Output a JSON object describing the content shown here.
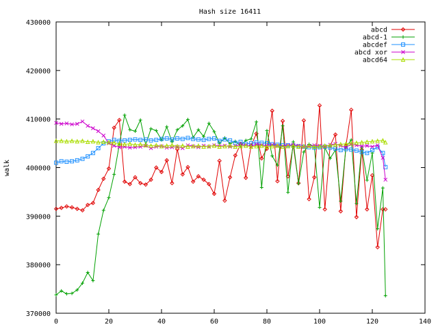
{
  "chart_data": {
    "type": "line",
    "title": "Hash size 16411",
    "xlabel": "",
    "ylabel": "walk",
    "xlim": [
      0,
      140
    ],
    "ylim": [
      370000,
      430000
    ],
    "xticks": [
      0,
      20,
      40,
      60,
      80,
      100,
      120,
      140
    ],
    "yticks": [
      370000,
      380000,
      390000,
      400000,
      410000,
      420000,
      430000
    ],
    "legend_position": "top-right",
    "grid": false,
    "series": [
      {
        "name": "abcd",
        "color": "#e00000",
        "marker": "diamond",
        "x": [
          0,
          2,
          4,
          6,
          8,
          10,
          12,
          14,
          16,
          18,
          20,
          22,
          24,
          26,
          28,
          30,
          32,
          34,
          36,
          38,
          40,
          42,
          44,
          46,
          48,
          50,
          52,
          54,
          56,
          58,
          60,
          62,
          64,
          66,
          68,
          70,
          72,
          74,
          76,
          78,
          80,
          82,
          84,
          86,
          88,
          90,
          92,
          94,
          96,
          98,
          100,
          102,
          104,
          106,
          108,
          110,
          112,
          114,
          116,
          118,
          120,
          122,
          124,
          125
        ],
        "y": [
          391500,
          391700,
          392000,
          391800,
          391500,
          391200,
          392300,
          392700,
          395400,
          397700,
          399800,
          408200,
          409800,
          397100,
          396600,
          398000,
          396800,
          396500,
          397500,
          400000,
          399100,
          401500,
          396800,
          403800,
          398600,
          400100,
          397100,
          398200,
          397500,
          396600,
          394600,
          401400,
          393200,
          398000,
          402500,
          404800,
          397900,
          404500,
          407000,
          401900,
          403900,
          411700,
          397200,
          409600,
          398200,
          404600,
          396800,
          409700,
          393500,
          398000,
          412800,
          391400,
          404500,
          406800,
          391000,
          404500,
          411900,
          389800,
          403700,
          391400,
          398400,
          383600,
          391400,
          391400
        ]
      },
      {
        "name": "abcd-1",
        "color": "#00a000",
        "marker": "plus",
        "x": [
          0,
          2,
          4,
          6,
          8,
          10,
          12,
          14,
          16,
          18,
          20,
          22,
          24,
          26,
          28,
          30,
          32,
          34,
          36,
          38,
          40,
          42,
          44,
          46,
          48,
          50,
          52,
          54,
          56,
          58,
          60,
          62,
          64,
          66,
          68,
          70,
          72,
          74,
          76,
          78,
          80,
          82,
          84,
          86,
          88,
          90,
          92,
          94,
          96,
          98,
          100,
          102,
          104,
          106,
          108,
          110,
          112,
          114,
          116,
          118,
          120,
          122,
          124,
          125
        ],
        "y": [
          373800,
          374600,
          374000,
          374100,
          374800,
          376200,
          378400,
          376700,
          386300,
          391200,
          393800,
          398600,
          404800,
          410800,
          407800,
          407500,
          409800,
          404700,
          408000,
          407600,
          405700,
          408400,
          405300,
          407800,
          408600,
          409900,
          406200,
          407800,
          406400,
          409100,
          407400,
          405000,
          406100,
          404900,
          405400,
          404500,
          405600,
          405900,
          409400,
          395900,
          407600,
          402400,
          400500,
          408600,
          394900,
          405300,
          396700,
          403200,
          404800,
          404400,
          391800,
          404100,
          401900,
          403600,
          393100,
          404200,
          405700,
          392600,
          404200,
          397400,
          403000,
          387400,
          395800,
          373600
        ]
      },
      {
        "name": "abcdef",
        "color": "#1e90ff",
        "marker": "square",
        "x": [
          0,
          2,
          4,
          6,
          8,
          10,
          12,
          14,
          16,
          18,
          20,
          22,
          24,
          26,
          28,
          30,
          32,
          34,
          36,
          38,
          40,
          42,
          44,
          46,
          48,
          50,
          52,
          54,
          56,
          58,
          60,
          62,
          64,
          66,
          68,
          70,
          72,
          74,
          76,
          78,
          80,
          82,
          84,
          86,
          88,
          90,
          92,
          94,
          96,
          98,
          100,
          102,
          104,
          106,
          108,
          110,
          112,
          114,
          116,
          118,
          120,
          122,
          124,
          125
        ],
        "y": [
          401000,
          401300,
          401200,
          401300,
          401500,
          401800,
          402300,
          403000,
          404000,
          405000,
          405400,
          405700,
          405500,
          405600,
          405700,
          405800,
          405700,
          405800,
          405600,
          405700,
          405900,
          406000,
          405800,
          406000,
          405900,
          406100,
          405900,
          405800,
          405700,
          405900,
          406000,
          405500,
          405800,
          405600,
          405100,
          405300,
          404900,
          405000,
          405200,
          405100,
          405000,
          404800,
          404700,
          404600,
          404600,
          404500,
          404400,
          404300,
          404200,
          404100,
          404200,
          404300,
          404100,
          403900,
          403600,
          403800,
          403700,
          403500,
          403200,
          403000,
          403600,
          404200,
          403000,
          400100
        ]
      },
      {
        "name": "abcd xor",
        "color": "#cc00cc",
        "marker": "cross",
        "x": [
          0,
          2,
          4,
          6,
          8,
          10,
          12,
          14,
          16,
          18,
          20,
          22,
          24,
          26,
          28,
          30,
          32,
          34,
          36,
          38,
          40,
          42,
          44,
          46,
          48,
          50,
          52,
          54,
          56,
          58,
          60,
          62,
          64,
          66,
          68,
          70,
          72,
          74,
          76,
          78,
          80,
          82,
          84,
          86,
          88,
          90,
          92,
          94,
          96,
          98,
          100,
          102,
          104,
          106,
          108,
          110,
          112,
          114,
          116,
          118,
          120,
          122,
          124,
          125
        ],
        "y": [
          409200,
          409000,
          409100,
          408900,
          409000,
          409500,
          408600,
          408100,
          407500,
          406600,
          405000,
          404500,
          404200,
          404300,
          404100,
          404200,
          404300,
          404500,
          404000,
          404300,
          404400,
          404100,
          404200,
          404300,
          404000,
          404600,
          404400,
          404200,
          404500,
          404300,
          404600,
          404400,
          404500,
          404300,
          404400,
          404700,
          404600,
          404400,
          404800,
          404600,
          404500,
          404700,
          404500,
          404400,
          404600,
          404700,
          404500,
          404300,
          404400,
          404600,
          404500,
          404300,
          404700,
          404900,
          404500,
          404200,
          404800,
          404600,
          404400,
          404500,
          404300,
          404600,
          402000,
          397500
        ]
      },
      {
        "name": "abcd64",
        "color": "#aadd00",
        "marker": "triangle",
        "x": [
          0,
          2,
          4,
          6,
          8,
          10,
          12,
          14,
          16,
          18,
          20,
          22,
          24,
          26,
          28,
          30,
          32,
          34,
          36,
          38,
          40,
          42,
          44,
          46,
          48,
          50,
          52,
          54,
          56,
          58,
          60,
          62,
          64,
          66,
          68,
          70,
          72,
          74,
          76,
          78,
          80,
          82,
          84,
          86,
          88,
          90,
          92,
          94,
          96,
          98,
          100,
          102,
          104,
          106,
          108,
          110,
          112,
          114,
          116,
          118,
          120,
          122,
          124,
          125
        ],
        "y": [
          405500,
          405500,
          405400,
          405500,
          405400,
          405500,
          405300,
          405400,
          405200,
          405300,
          405200,
          405100,
          404900,
          404800,
          404900,
          404700,
          404800,
          404600,
          404500,
          404600,
          404400,
          404500,
          404600,
          404400,
          404500,
          404300,
          404400,
          404500,
          404300,
          404400,
          404500,
          404300,
          404400,
          404500,
          404300,
          404400,
          404500,
          404300,
          404400,
          404500,
          404300,
          404400,
          404500,
          404300,
          404400,
          404500,
          404300,
          404400,
          404500,
          404300,
          404400,
          404500,
          404600,
          404700,
          404800,
          404900,
          405000,
          405100,
          405200,
          405300,
          405400,
          405500,
          405600,
          405200
        ]
      }
    ]
  }
}
